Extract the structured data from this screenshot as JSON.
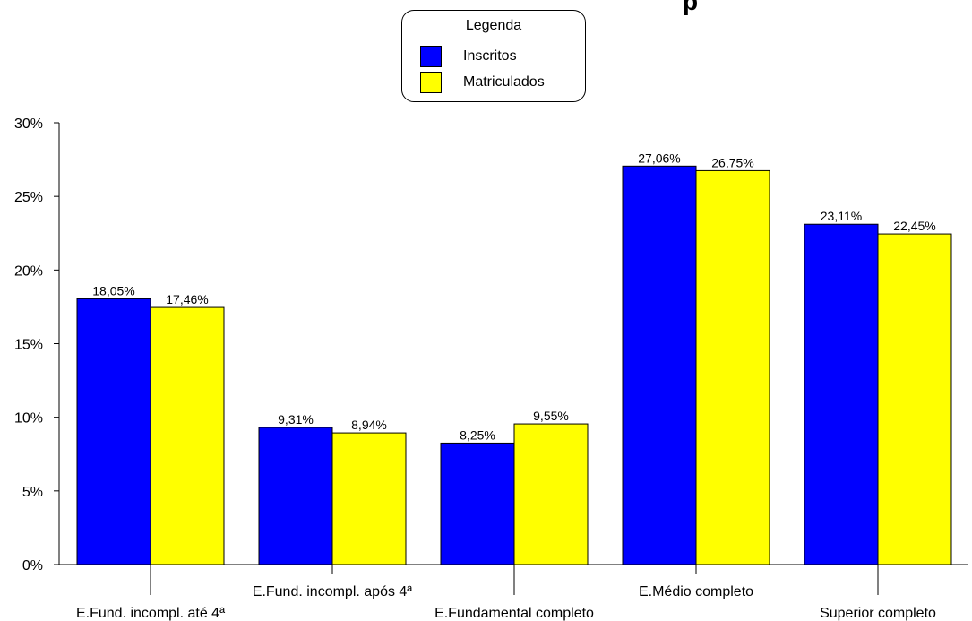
{
  "chart_data": {
    "type": "bar",
    "title_fragment": "p",
    "categories": [
      "E.Fund. incompl. até 4ª",
      "E.Fund. incompl. após 4ª",
      "E.Fundamental completo",
      "E.Médio completo",
      "Superior completo"
    ],
    "series": [
      {
        "name": "Inscritos",
        "color": "#0000ff",
        "values": [
          18.05,
          9.31,
          8.25,
          27.06,
          23.11
        ],
        "labels": [
          "18,05%",
          "9,31%",
          "8,25%",
          "27,06%",
          "23,11%"
        ]
      },
      {
        "name": "Matriculados",
        "color": "#ffff00",
        "values": [
          17.46,
          8.94,
          9.55,
          26.75,
          22.45
        ],
        "labels": [
          "17,46%",
          "8,94%",
          "9,55%",
          "26,75%",
          "22,45%"
        ]
      }
    ],
    "ylim": [
      0,
      30
    ],
    "yticks": [
      0,
      5,
      10,
      15,
      20,
      25,
      30
    ],
    "ytick_labels": [
      "0%",
      "5%",
      "10%",
      "15%",
      "20%",
      "25%",
      "30%"
    ],
    "legend": {
      "title": "Legenda",
      "position": "top-center"
    },
    "grid": false
  }
}
